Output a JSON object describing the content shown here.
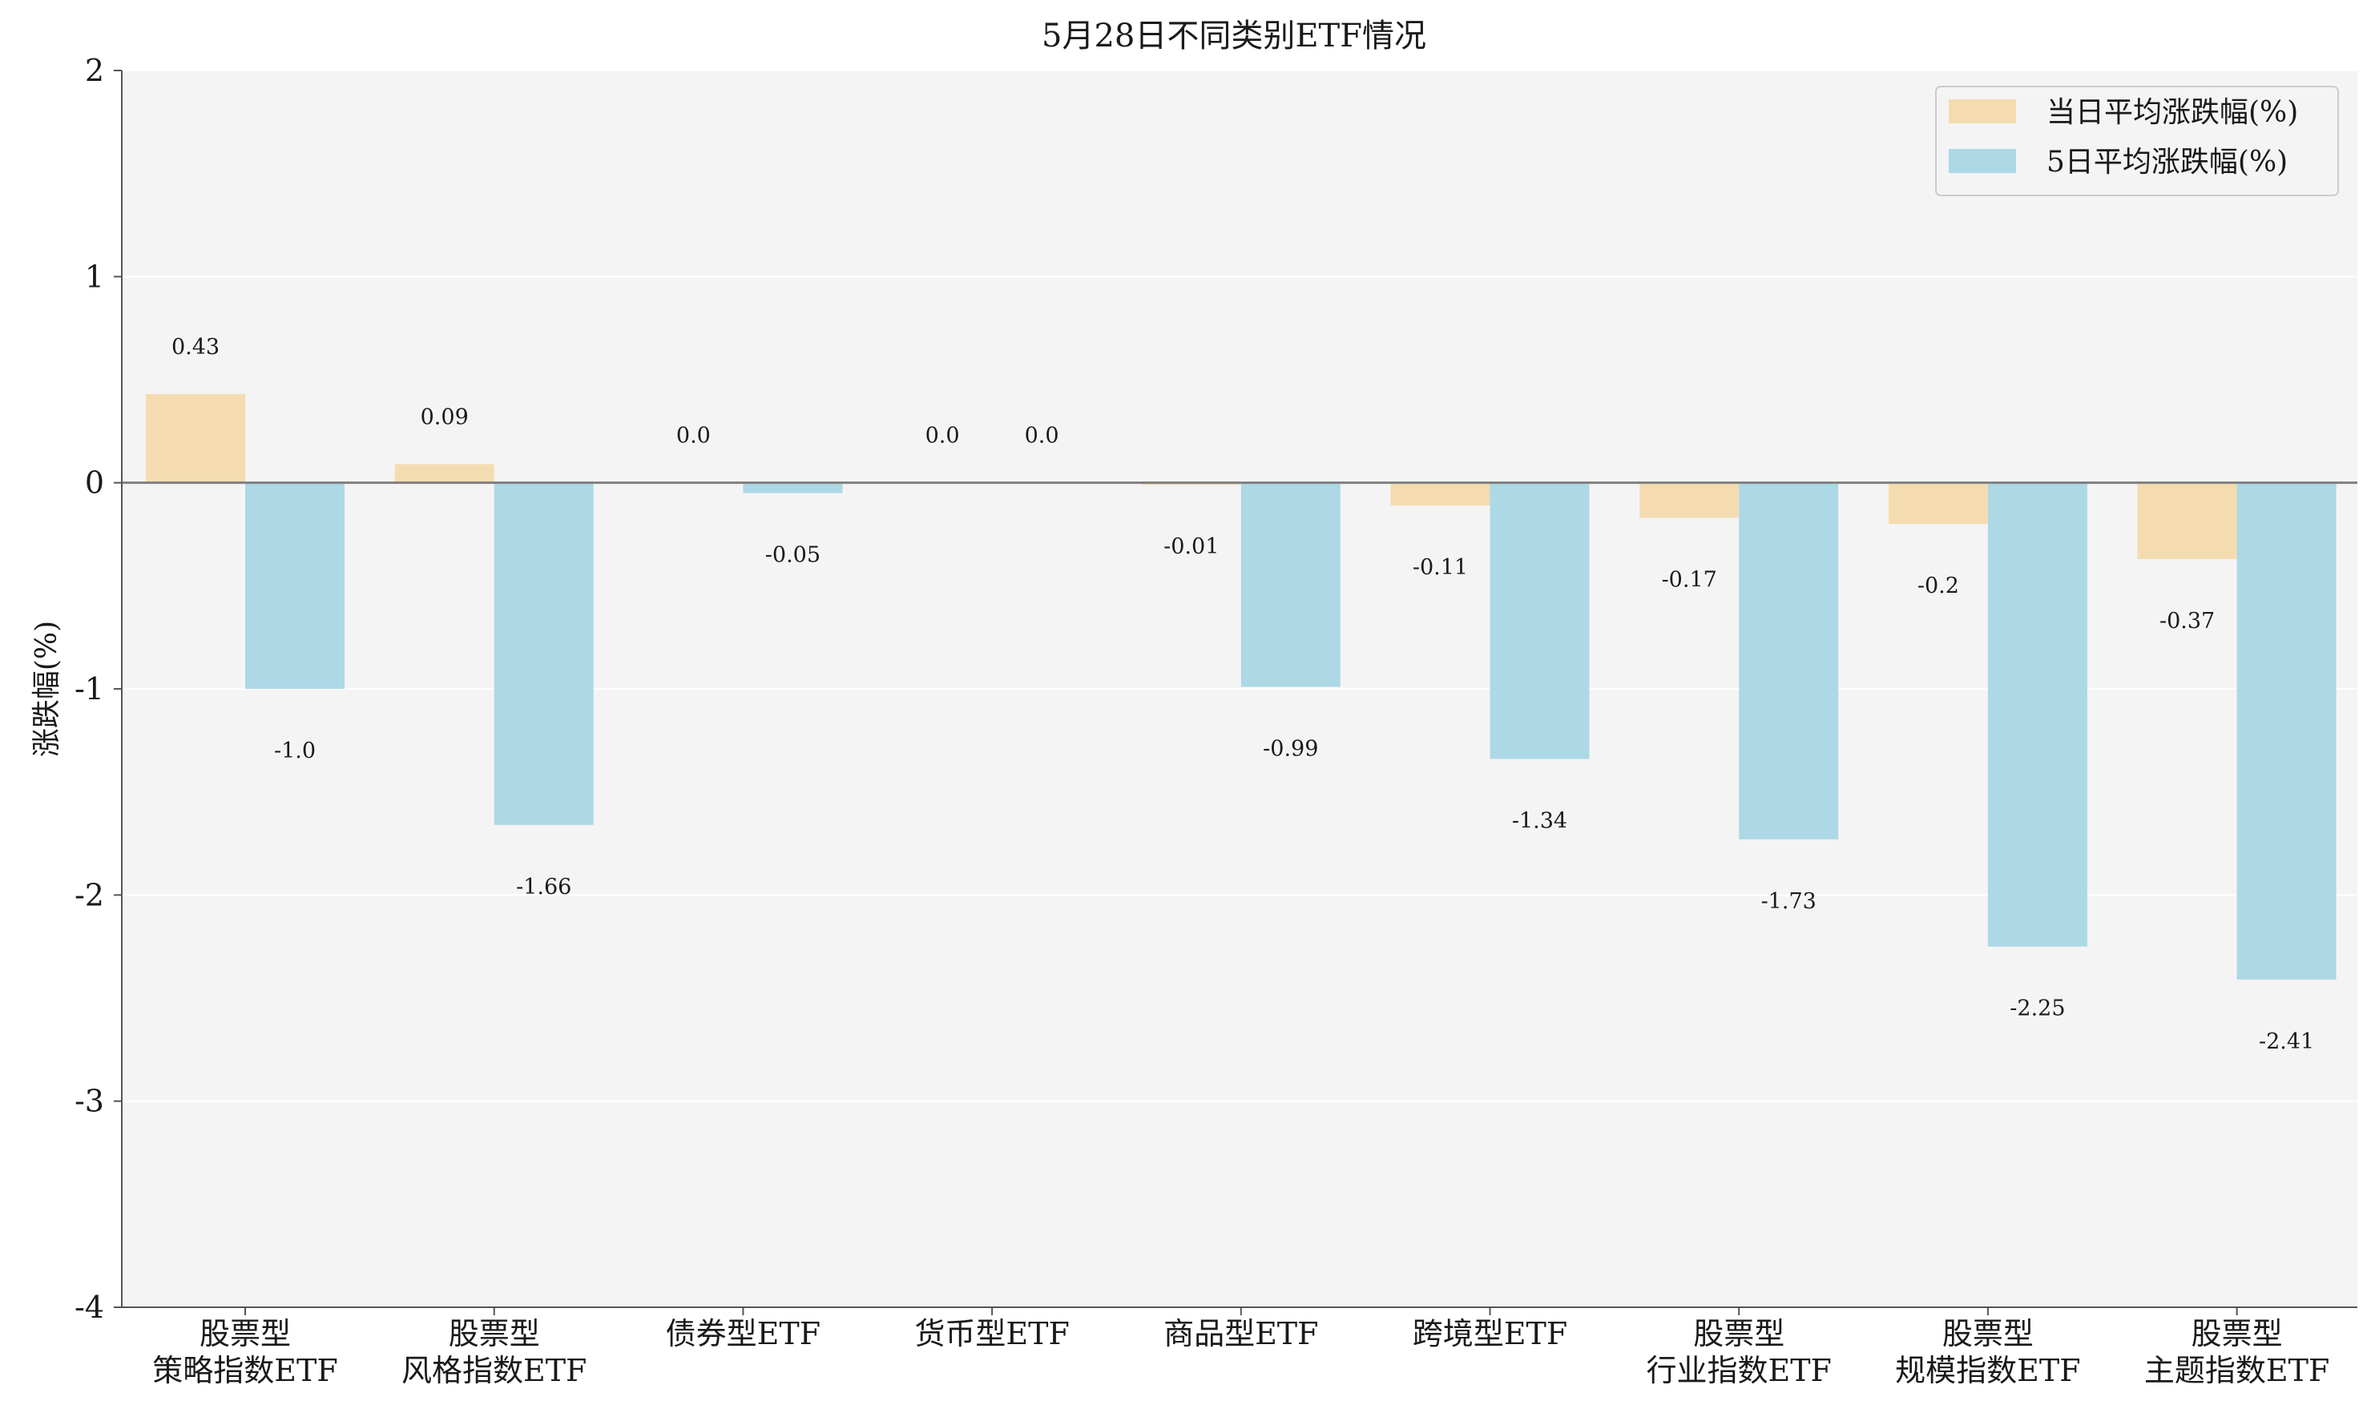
{
  "chart_data": {
    "type": "bar",
    "title": "5月28日不同类别ETF情况",
    "ylabel": "涨跌幅(%)",
    "ylim": [
      -4,
      2
    ],
    "yticks": [
      2,
      1,
      0,
      -1,
      -2,
      -3,
      -4
    ],
    "grid": true,
    "legend_position": "top-right",
    "categories": [
      [
        "股票型",
        "策略指数ETF"
      ],
      [
        "股票型",
        "风格指数ETF"
      ],
      [
        "债券型ETF"
      ],
      [
        "货币型ETF"
      ],
      [
        "商品型ETF"
      ],
      [
        "跨境型ETF"
      ],
      [
        "股票型",
        "行业指数ETF"
      ],
      [
        "股票型",
        "规模指数ETF"
      ],
      [
        "股票型",
        "主题指数ETF"
      ]
    ],
    "series": [
      {
        "name": "当日平均涨跌幅(%)",
        "color": "#f5dcb0",
        "values": [
          0.43,
          0.09,
          0.0,
          0.0,
          -0.01,
          -0.11,
          -0.17,
          -0.2,
          -0.37
        ],
        "labels": [
          "0.43",
          "0.09",
          "0.0",
          "0.0",
          "-0.01",
          "-0.11",
          "-0.17",
          "-0.2",
          "-0.37"
        ]
      },
      {
        "name": "5日平均涨跌幅(%)",
        "color": "#add8e6",
        "values": [
          -1.0,
          -1.66,
          -0.05,
          0.0,
          -0.99,
          -1.34,
          -1.73,
          -2.25,
          -2.41
        ],
        "labels": [
          "-1.0",
          "-1.66",
          "-0.05",
          "0.0",
          "-0.99",
          "-1.34",
          "-1.73",
          "-2.25",
          "-2.41"
        ]
      }
    ]
  }
}
